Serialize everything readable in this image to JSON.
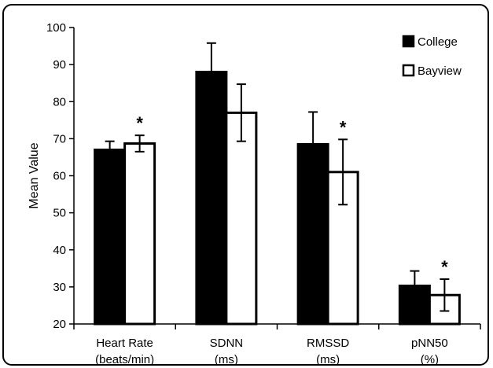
{
  "chart_data": {
    "type": "bar",
    "title": "",
    "ylabel": "Mean Value",
    "xlabel": "",
    "ylim": [
      20,
      100
    ],
    "yticks": [
      20,
      30,
      40,
      50,
      60,
      70,
      80,
      90,
      100
    ],
    "grid": false,
    "legend_position": "top-right",
    "categories": [
      {
        "line1": "Heart Rate",
        "line2": "(beats/min)"
      },
      {
        "line1": "SDNN",
        "line2": "(ms)"
      },
      {
        "line1": "RMSSD",
        "line2": "(ms)"
      },
      {
        "line1": "pNN50",
        "line2": "(%)"
      }
    ],
    "series": [
      {
        "name": "College",
        "color": "#000000",
        "values": [
          67,
          88,
          68.5,
          30.3
        ],
        "errors": [
          2.3,
          7.8,
          8.7,
          4.0
        ]
      },
      {
        "name": "Bayview",
        "color": "#ffffff",
        "values": [
          68.7,
          77,
          61,
          27.8
        ],
        "errors": [
          2.2,
          7.7,
          8.8,
          4.3
        ]
      }
    ],
    "significance": [
      {
        "category_index": 0,
        "series_index": 1,
        "label": "*"
      },
      {
        "category_index": 2,
        "series_index": 1,
        "label": "*"
      },
      {
        "category_index": 3,
        "series_index": 1,
        "label": "*"
      }
    ]
  }
}
